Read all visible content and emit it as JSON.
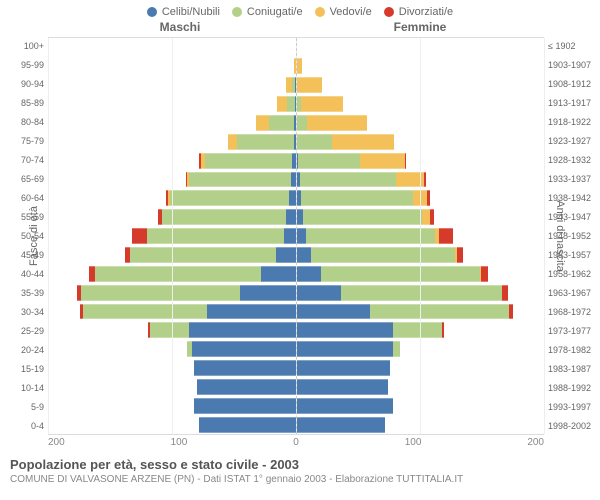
{
  "legend": [
    {
      "label": "Celibi/Nubili",
      "color": "#4a7ab0"
    },
    {
      "label": "Coniugati/e",
      "color": "#b3d08a"
    },
    {
      "label": "Vedovi/e",
      "color": "#f3c05a"
    },
    {
      "label": "Divorziati/e",
      "color": "#d63a2a"
    }
  ],
  "genders": {
    "male": "Maschi",
    "female": "Femmine"
  },
  "axis_titles": {
    "left": "Fasce di età",
    "right": "Anni di nascita"
  },
  "x_ticks": [
    200,
    100,
    0,
    100,
    200
  ],
  "x_max": 200,
  "caption": {
    "title": "Popolazione per età, sesso e stato civile - 2003",
    "sub": "COMUNE DI VALVASONE ARZENE (PN) - Dati ISTAT 1° gennaio 2003 - Elaborazione TUTTITALIA.IT"
  },
  "age_labels": [
    "100+",
    "95-99",
    "90-94",
    "85-89",
    "80-84",
    "75-79",
    "70-74",
    "65-69",
    "60-64",
    "55-59",
    "50-54",
    "45-49",
    "40-44",
    "35-39",
    "30-34",
    "25-29",
    "20-24",
    "15-19",
    "10-14",
    "5-9",
    "0-4"
  ],
  "year_labels": [
    "≤ 1902",
    "1903-1907",
    "1908-1912",
    "1913-1917",
    "1918-1922",
    "1923-1927",
    "1928-1932",
    "1933-1937",
    "1938-1942",
    "1943-1947",
    "1948-1952",
    "1953-1957",
    "1958-1962",
    "1963-1967",
    "1968-1972",
    "1973-1977",
    "1978-1982",
    "1983-1987",
    "1988-1992",
    "1993-1997",
    "1998-2002"
  ],
  "pyramid": [
    {
      "m": [
        0,
        0,
        0,
        0
      ],
      "f": [
        0,
        0,
        1,
        0
      ]
    },
    {
      "m": [
        0,
        0,
        2,
        0
      ],
      "f": [
        0,
        0,
        5,
        0
      ]
    },
    {
      "m": [
        1,
        2,
        5,
        0
      ],
      "f": [
        0,
        1,
        20,
        0
      ]
    },
    {
      "m": [
        1,
        6,
        8,
        0
      ],
      "f": [
        1,
        3,
        34,
        0
      ]
    },
    {
      "m": [
        2,
        20,
        10,
        0
      ],
      "f": [
        1,
        8,
        48,
        0
      ]
    },
    {
      "m": [
        2,
        46,
        7,
        0
      ],
      "f": [
        1,
        28,
        50,
        0
      ]
    },
    {
      "m": [
        3,
        70,
        4,
        1
      ],
      "f": [
        2,
        50,
        36,
        1
      ]
    },
    {
      "m": [
        4,
        82,
        2,
        1
      ],
      "f": [
        3,
        78,
        22,
        2
      ]
    },
    {
      "m": [
        6,
        96,
        1,
        2
      ],
      "f": [
        4,
        90,
        12,
        2
      ]
    },
    {
      "m": [
        8,
        100,
        0,
        3
      ],
      "f": [
        6,
        96,
        6,
        3
      ]
    },
    {
      "m": [
        10,
        110,
        0,
        12
      ],
      "f": [
        8,
        104,
        3,
        12
      ]
    },
    {
      "m": [
        16,
        118,
        0,
        4
      ],
      "f": [
        12,
        116,
        2,
        5
      ]
    },
    {
      "m": [
        28,
        134,
        0,
        5
      ],
      "f": [
        20,
        128,
        1,
        6
      ]
    },
    {
      "m": [
        45,
        128,
        0,
        4
      ],
      "f": [
        36,
        130,
        0,
        5
      ]
    },
    {
      "m": [
        72,
        100,
        0,
        2
      ],
      "f": [
        60,
        112,
        0,
        3
      ]
    },
    {
      "m": [
        86,
        32,
        0,
        1
      ],
      "f": [
        78,
        40,
        0,
        1
      ]
    },
    {
      "m": [
        84,
        4,
        0,
        0
      ],
      "f": [
        78,
        6,
        0,
        0
      ]
    },
    {
      "m": [
        82,
        0,
        0,
        0
      ],
      "f": [
        76,
        0,
        0,
        0
      ]
    },
    {
      "m": [
        80,
        0,
        0,
        0
      ],
      "f": [
        74,
        0,
        0,
        0
      ]
    },
    {
      "m": [
        82,
        0,
        0,
        0
      ],
      "f": [
        78,
        0,
        0,
        0
      ]
    },
    {
      "m": [
        78,
        0,
        0,
        0
      ],
      "f": [
        72,
        0,
        0,
        0
      ]
    }
  ],
  "styling": {
    "background": "#ffffff",
    "grid_color": "#eeeeee",
    "axis_font_size": 9,
    "legend_font_size": 11,
    "caption_title_size": 13,
    "caption_sub_size": 10,
    "row_height_fill": 0.84
  }
}
